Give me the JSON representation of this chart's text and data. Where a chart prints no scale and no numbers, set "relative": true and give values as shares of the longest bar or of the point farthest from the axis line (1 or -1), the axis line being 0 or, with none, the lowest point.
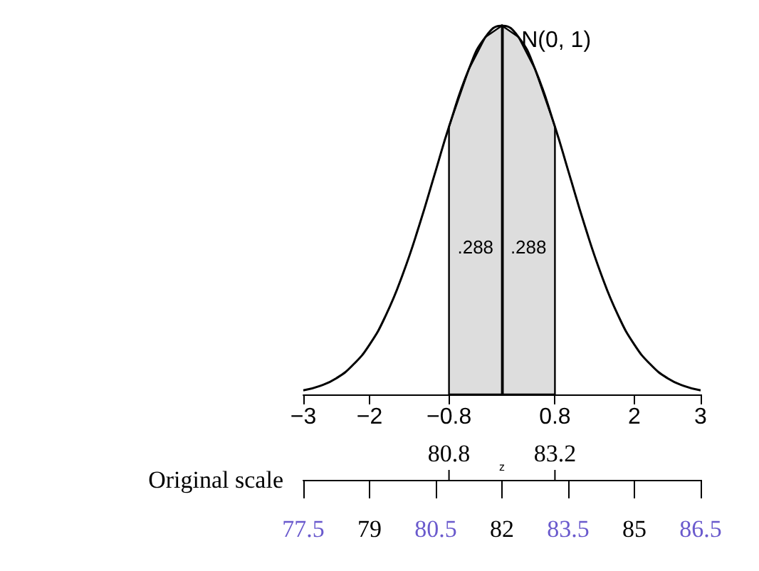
{
  "chart_data": {
    "type": "line",
    "relative": true,
    "color": "#000000",
    "x": [
      -3,
      -2.75,
      -2.5,
      -2.25,
      -2,
      -1.75,
      -1.5,
      -1.25,
      -1,
      -0.8,
      -0.5,
      -0.25,
      0,
      0.25,
      0.5,
      0.8,
      1,
      1.25,
      1.5,
      1.75,
      2,
      2.25,
      2.5,
      2.75,
      3
    ],
    "values": [
      0.011,
      0.023,
      0.044,
      0.08,
      0.135,
      0.216,
      0.325,
      0.458,
      0.607,
      0.726,
      0.882,
      0.969,
      1,
      0.969,
      0.882,
      0.726,
      0.607,
      0.458,
      0.325,
      0.216,
      0.135,
      0.08,
      0.044,
      0.023,
      0.011
    ],
    "xlim": [
      -3,
      3
    ],
    "xticks": [
      {
        "value": -3,
        "label": "−3"
      },
      {
        "value": -2,
        "label": "−2"
      },
      {
        "value": -0.8,
        "label": "−0.8"
      },
      0.8,
      2,
      3
    ],
    "x2lim": [
      77.5,
      86.5
    ],
    "x2ticks": [
      77.5,
      79,
      80.5,
      82,
      83.5,
      85,
      86.5
    ],
    "x2label": "Original scale",
    "xlabel": "z",
    "bands": [
      {
        "axis": "x",
        "from": -0.8,
        "to": 0,
        "label": ".288",
        "color": "#dddddd"
      },
      {
        "axis": "x",
        "from": 0,
        "to": 0.8,
        "label": ".288",
        "color": "#dddddd"
      }
    ],
    "ref_lines": [
      {
        "axis": "x",
        "value": 0,
        "label": null
      }
    ],
    "annotations": [
      {
        "text": "N(0, 1)",
        "x": 0.25,
        "y": 0.96
      },
      "80.8",
      "83.2"
    ],
    "grid": false,
    "marker": "none",
    "line_style": "solid"
  }
}
